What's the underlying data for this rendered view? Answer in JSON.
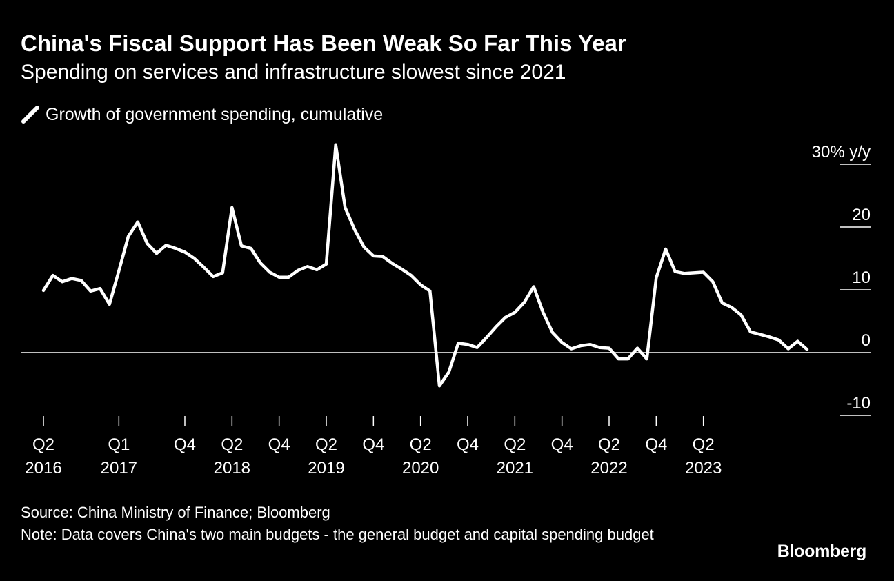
{
  "title": "China's Fiscal Support Has Been Weak So Far This Year",
  "subtitle": "Spending on services and infrastructure slowest since 2021",
  "legend_label": "Growth of government spending, cumulative",
  "source": "Source: China Ministry of Finance; Bloomberg",
  "note": "Note: Data covers China's two main budgets - the general budget and capital spending budget",
  "brand": "Bloomberg",
  "colors": {
    "background": "#000000",
    "line": "#ffffff",
    "text": "#ffffff"
  },
  "chart_data": {
    "type": "line",
    "ylim": [
      -10,
      30
    ],
    "grid": false,
    "y_ticks": [
      {
        "value": 30,
        "label": "30% y/y"
      },
      {
        "value": 20,
        "label": "20"
      },
      {
        "value": 10,
        "label": "10"
      },
      {
        "value": 0,
        "label": "0"
      },
      {
        "value": -10,
        "label": "-10"
      }
    ],
    "x_ticks": [
      {
        "index": 0,
        "top": "Q2",
        "bottom": "2016"
      },
      {
        "index": 8,
        "top": "Q1",
        "bottom": "2017"
      },
      {
        "index": 15,
        "top": "Q4",
        "bottom": ""
      },
      {
        "index": 20,
        "top": "Q2",
        "bottom": "2018"
      },
      {
        "index": 25,
        "top": "Q4",
        "bottom": ""
      },
      {
        "index": 30,
        "top": "Q2",
        "bottom": "2019"
      },
      {
        "index": 35,
        "top": "Q4",
        "bottom": ""
      },
      {
        "index": 40,
        "top": "Q2",
        "bottom": "2020"
      },
      {
        "index": 45,
        "top": "Q4",
        "bottom": ""
      },
      {
        "index": 50,
        "top": "Q2",
        "bottom": "2021"
      },
      {
        "index": 55,
        "top": "Q4",
        "bottom": ""
      },
      {
        "index": 60,
        "top": "Q2",
        "bottom": "2022"
      },
      {
        "index": 65,
        "top": "Q4",
        "bottom": ""
      },
      {
        "index": 70,
        "top": "Q2",
        "bottom": "2023"
      }
    ],
    "series": [
      {
        "name": "Growth of government spending, cumulative",
        "values": [
          9.9,
          12.3,
          11.3,
          11.8,
          11.5,
          9.8,
          10.2,
          7.7,
          13.0,
          18.5,
          20.8,
          17.4,
          15.8,
          17.1,
          16.6,
          16.0,
          15.0,
          13.6,
          12.1,
          12.7,
          23.1,
          17.0,
          16.6,
          14.3,
          12.8,
          12.0,
          12.0,
          13.1,
          13.7,
          13.2,
          14.1,
          33.1,
          23.1,
          19.6,
          16.8,
          15.4,
          15.3,
          14.2,
          13.3,
          12.3,
          10.8,
          9.8,
          -5.3,
          -3.1,
          1.5,
          1.3,
          0.8,
          2.4,
          4.1,
          5.6,
          6.4,
          8.0,
          10.5,
          6.4,
          3.2,
          1.6,
          0.6,
          1.1,
          1.3,
          0.8,
          0.7,
          -1.0,
          -1.0,
          0.7,
          -1.0,
          11.9,
          16.5,
          12.9,
          12.6,
          12.7,
          12.8,
          11.3,
          7.9,
          7.2,
          6.0,
          3.3,
          2.9,
          2.5,
          2.0,
          0.6,
          1.8,
          0.5
        ]
      }
    ]
  }
}
